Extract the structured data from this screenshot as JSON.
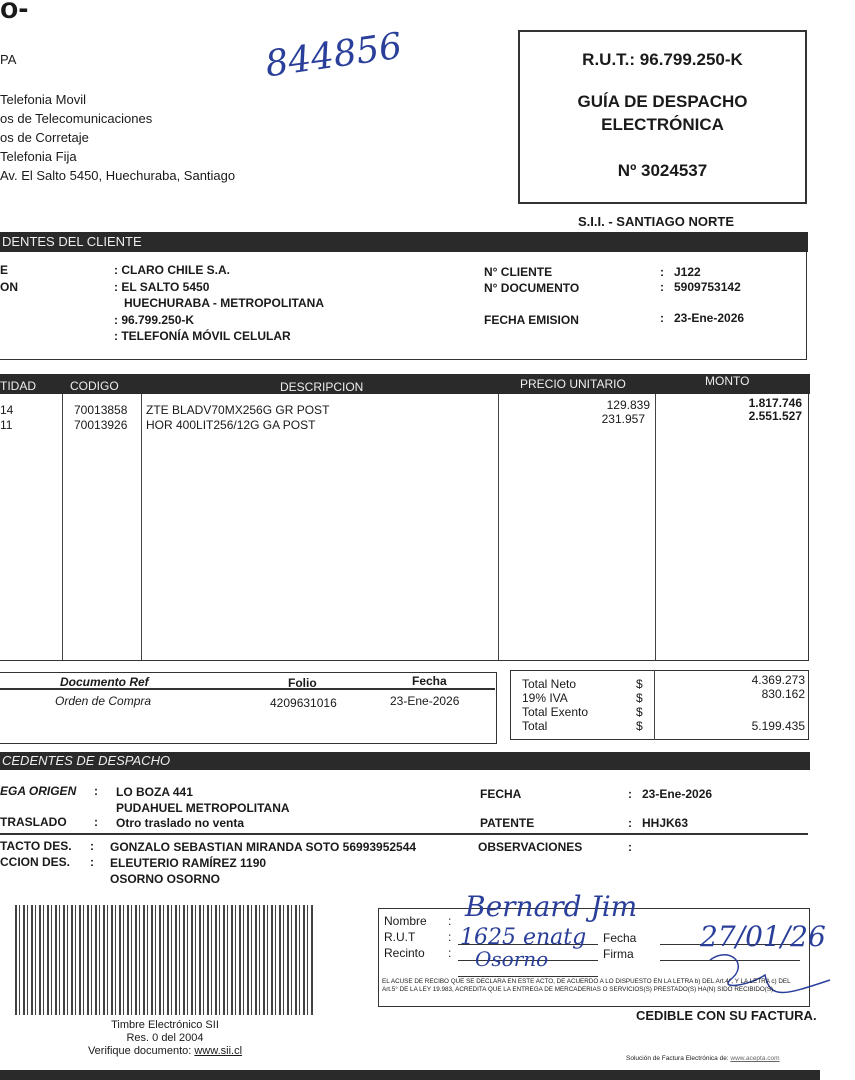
{
  "issuer": {
    "logo_text": "o-",
    "name_partial": "PA",
    "lines": [
      "Telefonia Movil",
      "os de Telecomunicaciones",
      "os de Corretaje",
      "Telefonia Fija",
      "Av. El Salto 5450, Huechuraba, Santiago"
    ]
  },
  "handwritten_number": "844856",
  "doc_box": {
    "rut": "R.U.T.: 96.799.250-K",
    "title1": "GUÍA DE DESPACHO",
    "title2": "ELECTRÓNICA",
    "number": "Nº 3024537"
  },
  "sii": "S.I.I. - SANTIAGO NORTE",
  "client": {
    "header": "DENTES DEL CLIENTE",
    "label1": "E",
    "label2": "ON",
    "name": ": CLARO CHILE S.A.",
    "address1": ": EL SALTO 5450",
    "address2": "HUECHURABA -  METROPOLITANA",
    "rut": ": 96.799.250-K",
    "giro": ": TELEFONÍA MÓVIL CELULAR",
    "right": [
      {
        "label": "N° CLIENTE",
        "value": "J122"
      },
      {
        "label": "N° DOCUMENTO",
        "value": "5909753142"
      },
      {
        "label": "FECHA EMISION",
        "value": "23-Ene-2026"
      }
    ]
  },
  "items": {
    "headers": [
      "TIDAD",
      "CODIGO",
      "DESCRIPCION",
      "PRECIO UNITARIO",
      "MONTO"
    ],
    "rows": [
      {
        "qty": "14",
        "code": "70013858",
        "desc": "ZTE BLADV70MX256G GR POST",
        "price": "129.839",
        "amount": "1.817.746"
      },
      {
        "qty": "11",
        "code": "70013926",
        "desc": "HOR 400LIT256/12G GA POST",
        "price": "231.957",
        "amount": "2.551.527"
      }
    ]
  },
  "refs": {
    "headers": [
      "Documento Ref",
      "Folio",
      "Fecha"
    ],
    "row": [
      "Orden de Compra",
      "4209631016",
      "23-Ene-2026"
    ]
  },
  "totals": [
    {
      "label": "Total Neto",
      "cur": "$",
      "value": "4.369.273"
    },
    {
      "label": "19% IVA",
      "cur": "$",
      "value": "830.162"
    },
    {
      "label": "Total Exento",
      "cur": "$",
      "value": ""
    },
    {
      "label": "Total",
      "cur": "$",
      "value": "5.199.435"
    }
  ],
  "dispatch": {
    "header": "CEDENTES DE DESPACHO",
    "origin_label": "EGA ORIGEN",
    "origin1": "LO BOZA 441",
    "origin2": "PUDAHUEL   METROPOLITANA",
    "transfer_label": "TRASLADO",
    "transfer": "Otro traslado no venta",
    "date_label": "FECHA",
    "date": "23-Ene-2026",
    "plate_label": "PATENTE",
    "plate": "HHJK63",
    "contact_label": "TACTO DES.",
    "contact": "GONZALO SEBASTIAN MIRANDA SOTO 56993952544",
    "obs_label": "OBSERVACIONES",
    "addr_label": "CCION DES.",
    "addr1": "ELEUTERIO RAMÍREZ 1190",
    "addr2": "OSORNO   OSORNO"
  },
  "stamp": {
    "line1": "Timbre Electrónico SII",
    "line2": "Res. 0 del 2004",
    "line3_prefix": "Verifique documento: ",
    "link": "www.sii.cl"
  },
  "receipt": {
    "nombre": "Nombre",
    "rut": "R.U.T",
    "recinto": "Recinto",
    "fecha": "Fecha",
    "firma": "Firma",
    "hw_name": "Bernard Jim",
    "hw_rut": "1625 enatg",
    "hw_recinto": "Osorno",
    "hw_date": "27/01/26",
    "legal": "EL ACUSE DE RECIBO QUE SE DECLARA EN ESTE ACTO, DE ACUERDO A LO DISPUESTO EN LA LETRA b) DEL Art.4°, Y LA LETRA c) DEL Art.5° DE LA LEY 19.983, ACREDITA QUE LA ENTREGA DE MERCADERIAS O SERVICIOS(S) PRESTADO(S) HA(N) SIDO RECIBIDO(S)."
  },
  "cedible": "CEDIBLE CON SU FACTURA.",
  "footer": {
    "prefix": "Solución de Factura Electrónica de: ",
    "link": "www.acepta.com"
  }
}
